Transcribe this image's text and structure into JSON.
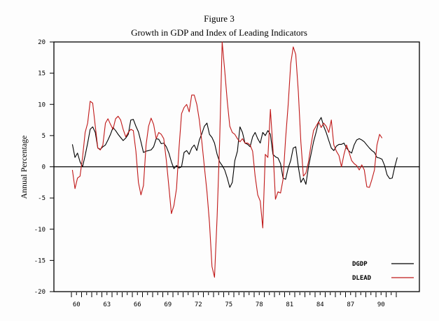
{
  "chart_data": {
    "type": "line",
    "title": "Figure 3",
    "subtitle": "Growth in GDP and Index of Leading Indicators",
    "xlabel": "",
    "ylabel": "Annual Percentage",
    "ylim": [
      -20,
      20
    ],
    "yticks": [
      20,
      15,
      10,
      5,
      0,
      -5,
      -10,
      -15,
      -20
    ],
    "xlim": [
      1958.2,
      1994.2
    ],
    "xtick_labels": [
      "60",
      "63",
      "66",
      "69",
      "72",
      "75",
      "78",
      "81",
      "84",
      "87",
      "90"
    ],
    "xtick_years": [
      1960,
      1963,
      1966,
      1969,
      1972,
      1975,
      1978,
      1981,
      1984,
      1987,
      1990
    ],
    "zero_line": true,
    "grid": false,
    "legend": {
      "position": "bottom-right"
    },
    "x_start": 1960.1,
    "x_step": 0.25,
    "series": [
      {
        "name": "DGDP",
        "color": "#000000",
        "values": [
          3.6,
          1.5,
          2.2,
          0.8,
          0.0,
          1.8,
          3.8,
          6.0,
          6.4,
          5.5,
          3.0,
          2.8,
          3.2,
          3.5,
          4.3,
          5.2,
          6.3,
          5.8,
          5.2,
          4.7,
          4.2,
          4.6,
          5.2,
          7.5,
          7.6,
          6.5,
          5.6,
          4.0,
          2.3,
          2.5,
          2.6,
          2.7,
          3.2,
          4.5,
          4.4,
          3.7,
          3.8,
          3.2,
          2.2,
          0.8,
          -0.3,
          0.2,
          -0.2,
          0.0,
          2.3,
          2.6,
          2.0,
          3.0,
          3.5,
          2.6,
          4.3,
          5.3,
          6.5,
          7.0,
          5.2,
          4.7,
          3.8,
          2.0,
          0.8,
          0.2,
          -0.5,
          -1.8,
          -3.3,
          -2.5,
          1.0,
          2.5,
          6.4,
          5.5,
          3.8,
          3.6,
          3.2,
          4.8,
          5.5,
          4.5,
          3.8,
          5.5,
          5.0,
          5.8,
          5.2,
          2.0,
          1.6,
          1.4,
          0.5,
          -1.8,
          -2.0,
          -0.2,
          1.0,
          3.0,
          3.2,
          0.0,
          -2.5,
          -1.8,
          -2.8,
          0.0,
          2.0,
          4.0,
          5.5,
          7.2,
          7.9,
          6.5,
          5.5,
          4.2,
          3.0,
          2.6,
          3.3,
          3.6,
          3.6,
          3.8,
          3.0,
          2.5,
          2.2,
          3.5,
          4.3,
          4.5,
          4.3,
          4.0,
          3.5,
          3.0,
          2.6,
          2.3,
          1.5,
          1.4,
          1.2,
          0.2,
          -1.3,
          -1.9,
          -1.8,
          0.0,
          1.5
        ]
      },
      {
        "name": "DLEAD",
        "color": "#c01818",
        "values": [
          -0.5,
          -3.5,
          -1.8,
          -1.5,
          1.5,
          5.5,
          7.0,
          10.5,
          10.2,
          6.5,
          3.0,
          2.7,
          3.5,
          7.0,
          7.7,
          6.8,
          6.0,
          7.7,
          8.1,
          7.5,
          6.0,
          4.8,
          5.5,
          6.0,
          5.8,
          2.5,
          -2.5,
          -4.5,
          -3.0,
          3.5,
          6.5,
          7.8,
          6.8,
          4.5,
          5.5,
          5.2,
          4.5,
          1.0,
          -3.2,
          -7.5,
          -6.2,
          -3.5,
          3.0,
          8.5,
          9.5,
          10.0,
          8.8,
          11.5,
          11.5,
          10.0,
          7.5,
          4.0,
          0.0,
          -4.0,
          -9.0,
          -16.0,
          -17.7,
          -8.0,
          4.0,
          20.0,
          15.5,
          10.5,
          6.5,
          5.5,
          5.2,
          4.5,
          4.0,
          4.5,
          3.8,
          3.8,
          3.5,
          2.5,
          -1.5,
          -4.5,
          -5.5,
          -9.8,
          2.0,
          1.5,
          9.2,
          3.0,
          -5.2,
          -4.0,
          -4.2,
          -2.0,
          4.5,
          10.0,
          16.5,
          19.2,
          18.0,
          12.0,
          4.0,
          -1.5,
          -1.0,
          0.8,
          3.5,
          5.8,
          6.5,
          7.2,
          6.3,
          7.0,
          6.5,
          5.5,
          7.5,
          3.5,
          2.5,
          1.8,
          0.0,
          2.0,
          3.5,
          2.3,
          1.0,
          0.5,
          0.2,
          -0.5,
          0.3,
          -0.5,
          -3.2,
          -3.3,
          -2.0,
          -0.5,
          3.5,
          5.2,
          4.6
        ]
      }
    ]
  }
}
